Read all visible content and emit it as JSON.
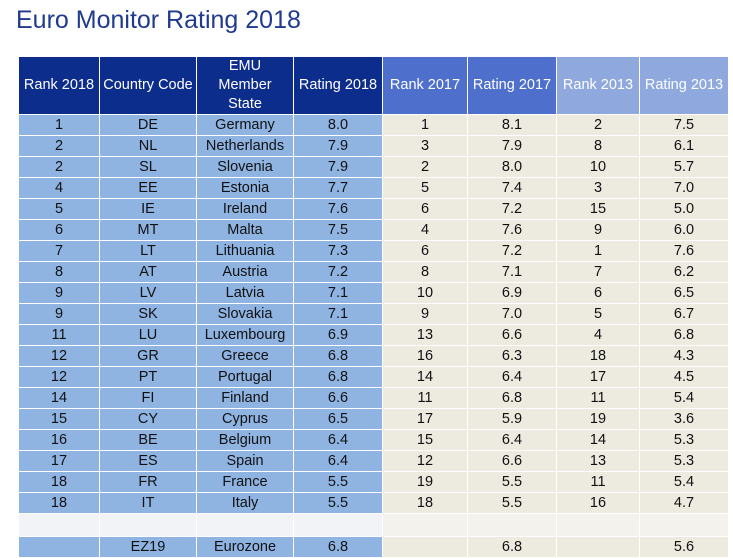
{
  "title": "Euro Monitor Rating 2018",
  "headers": {
    "rank2018": "Rank 2018",
    "code": "Country Code",
    "member_l1": "EMU",
    "member_l2": "Member",
    "member_l3": "State",
    "rating2018": "Rating 2018",
    "rank2017": "Rank 2017",
    "rating2017": "Rating 2017",
    "rank2013": "Rank 2013",
    "rating2013": "Rating 2013"
  },
  "rows": [
    {
      "rank2018": "1",
      "code": "DE",
      "state": "Germany",
      "rating2018": "8.0",
      "rank2017": "1",
      "rating2017": "8.1",
      "rank2013": "2",
      "rating2013": "7.5"
    },
    {
      "rank2018": "2",
      "code": "NL",
      "state": "Netherlands",
      "rating2018": "7.9",
      "rank2017": "3",
      "rating2017": "7.9",
      "rank2013": "8",
      "rating2013": "6.1"
    },
    {
      "rank2018": "2",
      "code": "SL",
      "state": "Slovenia",
      "rating2018": "7.9",
      "rank2017": "2",
      "rating2017": "8.0",
      "rank2013": "10",
      "rating2013": "5.7"
    },
    {
      "rank2018": "4",
      "code": "EE",
      "state": "Estonia",
      "rating2018": "7.7",
      "rank2017": "5",
      "rating2017": "7.4",
      "rank2013": "3",
      "rating2013": "7.0"
    },
    {
      "rank2018": "5",
      "code": "IE",
      "state": "Ireland",
      "rating2018": "7.6",
      "rank2017": "6",
      "rating2017": "7.2",
      "rank2013": "15",
      "rating2013": "5.0"
    },
    {
      "rank2018": "6",
      "code": "MT",
      "state": "Malta",
      "rating2018": "7.5",
      "rank2017": "4",
      "rating2017": "7.6",
      "rank2013": "9",
      "rating2013": "6.0"
    },
    {
      "rank2018": "7",
      "code": "LT",
      "state": "Lithuania",
      "rating2018": "7.3",
      "rank2017": "6",
      "rating2017": "7.2",
      "rank2013": "1",
      "rating2013": "7.6"
    },
    {
      "rank2018": "8",
      "code": "AT",
      "state": "Austria",
      "rating2018": "7.2",
      "rank2017": "8",
      "rating2017": "7.1",
      "rank2013": "7",
      "rating2013": "6.2"
    },
    {
      "rank2018": "9",
      "code": "LV",
      "state": "Latvia",
      "rating2018": "7.1",
      "rank2017": "10",
      "rating2017": "6.9",
      "rank2013": "6",
      "rating2013": "6.5"
    },
    {
      "rank2018": "9",
      "code": "SK",
      "state": "Slovakia",
      "rating2018": "7.1",
      "rank2017": "9",
      "rating2017": "7.0",
      "rank2013": "5",
      "rating2013": "6.7"
    },
    {
      "rank2018": "11",
      "code": "LU",
      "state": "Luxembourg",
      "rating2018": "6.9",
      "rank2017": "13",
      "rating2017": "6.6",
      "rank2013": "4",
      "rating2013": "6.8"
    },
    {
      "rank2018": "12",
      "code": "GR",
      "state": "Greece",
      "rating2018": "6.8",
      "rank2017": "16",
      "rating2017": "6.3",
      "rank2013": "18",
      "rating2013": "4.3"
    },
    {
      "rank2018": "12",
      "code": "PT",
      "state": "Portugal",
      "rating2018": "6.8",
      "rank2017": "14",
      "rating2017": "6.4",
      "rank2013": "17",
      "rating2013": "4.5"
    },
    {
      "rank2018": "14",
      "code": "FI",
      "state": "Finland",
      "rating2018": "6.6",
      "rank2017": "11",
      "rating2017": "6.8",
      "rank2013": "11",
      "rating2013": "5.4"
    },
    {
      "rank2018": "15",
      "code": "CY",
      "state": "Cyprus",
      "rating2018": "6.5",
      "rank2017": "17",
      "rating2017": "5.9",
      "rank2013": "19",
      "rating2013": "3.6"
    },
    {
      "rank2018": "16",
      "code": "BE",
      "state": "Belgium",
      "rating2018": "6.4",
      "rank2017": "15",
      "rating2017": "6.4",
      "rank2013": "14",
      "rating2013": "5.3"
    },
    {
      "rank2018": "17",
      "code": "ES",
      "state": "Spain",
      "rating2018": "6.4",
      "rank2017": "12",
      "rating2017": "6.6",
      "rank2013": "13",
      "rating2013": "5.3"
    },
    {
      "rank2018": "18",
      "code": "FR",
      "state": "France",
      "rating2018": "5.5",
      "rank2017": "19",
      "rating2017": "5.5",
      "rank2013": "11",
      "rating2013": "5.4"
    },
    {
      "rank2018": "18",
      "code": "IT",
      "state": "Italy",
      "rating2018": "5.5",
      "rank2017": "18",
      "rating2017": "5.5",
      "rank2013": "16",
      "rating2013": "4.7"
    }
  ],
  "summary": {
    "rank2018": "",
    "code": "EZ19",
    "state": "Eurozone",
    "rating2018": "6.8",
    "rank2017": "",
    "rating2017": "6.8",
    "rank2013": "",
    "rating2013": "5.6"
  },
  "colors": {
    "title": "#1f3a8f",
    "header_dark": "#0d2d8c",
    "header_mid": "#4e6fcb",
    "header_light": "#8fa9de",
    "cell_blue": "#8fb4e2",
    "cell_stone": "#edeae0"
  }
}
